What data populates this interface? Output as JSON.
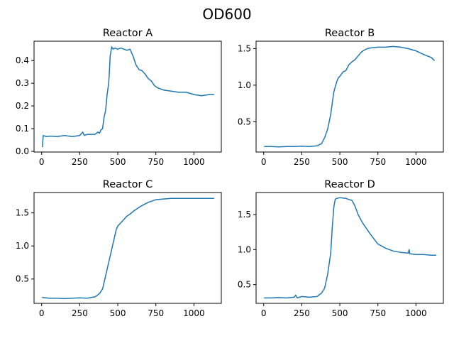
{
  "figure_title": "OD600",
  "chart_data": [
    {
      "type": "line",
      "title": "Reactor A",
      "xlabel": "",
      "ylabel": "",
      "xlim": [
        -50,
        1180
      ],
      "ylim": [
        -0.003,
        0.485
      ],
      "xticks": [
        0,
        250,
        500,
        750,
        1000
      ],
      "yticks": [
        0.0,
        0.1,
        0.2,
        0.3,
        0.4
      ],
      "ytick_labels": [
        "0.0",
        "0.1",
        "0.2",
        "0.3",
        "0.4"
      ],
      "grid": false,
      "series": [
        {
          "color": "#1f77b4",
          "x": [
            5,
            10,
            30,
            60,
            100,
            150,
            200,
            250,
            270,
            280,
            300,
            350,
            370,
            380,
            390,
            400,
            410,
            420,
            430,
            440,
            445,
            450,
            460,
            465,
            470,
            480,
            500,
            520,
            540,
            560,
            580,
            600,
            620,
            640,
            660,
            680,
            700,
            720,
            740,
            760,
            800,
            850,
            900,
            950,
            1000,
            1050,
            1100,
            1130
          ],
          "y": [
            0.02,
            0.07,
            0.065,
            0.067,
            0.065,
            0.07,
            0.065,
            0.07,
            0.085,
            0.07,
            0.075,
            0.075,
            0.085,
            0.08,
            0.095,
            0.1,
            0.15,
            0.18,
            0.25,
            0.3,
            0.35,
            0.42,
            0.46,
            0.455,
            0.45,
            0.455,
            0.45,
            0.455,
            0.45,
            0.445,
            0.45,
            0.42,
            0.38,
            0.36,
            0.355,
            0.34,
            0.32,
            0.31,
            0.29,
            0.28,
            0.27,
            0.265,
            0.26,
            0.26,
            0.25,
            0.245,
            0.25,
            0.25
          ]
        }
      ]
    },
    {
      "type": "line",
      "title": "Reactor B",
      "xlabel": "",
      "ylabel": "",
      "xlim": [
        -50,
        1180
      ],
      "ylim": [
        0.085,
        1.602
      ],
      "xticks": [
        0,
        250,
        500,
        750,
        1000
      ],
      "yticks": [
        0.5,
        1.0,
        1.5
      ],
      "ytick_labels": [
        "0.5",
        "1.0",
        "1.5"
      ],
      "grid": false,
      "series": [
        {
          "color": "#1f77b4",
          "x": [
            5,
            50,
            100,
            150,
            200,
            250,
            300,
            350,
            380,
            400,
            420,
            440,
            450,
            460,
            470,
            480,
            490,
            500,
            520,
            540,
            560,
            580,
            600,
            620,
            640,
            660,
            680,
            700,
            750,
            800,
            850,
            900,
            950,
            1000,
            1050,
            1100,
            1120
          ],
          "y": [
            0.16,
            0.16,
            0.155,
            0.16,
            0.16,
            0.165,
            0.16,
            0.17,
            0.2,
            0.28,
            0.4,
            0.6,
            0.75,
            0.9,
            0.98,
            1.05,
            1.1,
            1.12,
            1.18,
            1.2,
            1.28,
            1.32,
            1.35,
            1.4,
            1.45,
            1.48,
            1.5,
            1.51,
            1.52,
            1.52,
            1.53,
            1.52,
            1.5,
            1.47,
            1.42,
            1.38,
            1.34
          ]
        }
      ]
    },
    {
      "type": "line",
      "title": "Reactor C",
      "xlabel": "",
      "ylabel": "",
      "xlim": [
        -50,
        1180
      ],
      "ylim": [
        0.132,
        1.808
      ],
      "xticks": [
        0,
        250,
        500,
        750,
        1000
      ],
      "yticks": [
        0.5,
        1.0,
        1.5
      ],
      "ytick_labels": [
        "0.5",
        "1.0",
        "1.5"
      ],
      "grid": false,
      "series": [
        {
          "color": "#1f77b4",
          "x": [
            5,
            50,
            100,
            150,
            200,
            250,
            300,
            350,
            380,
            400,
            420,
            440,
            460,
            470,
            480,
            490,
            500,
            520,
            540,
            560,
            580,
            600,
            650,
            700,
            750,
            800,
            850,
            900,
            950,
            1000,
            1050,
            1100,
            1130
          ],
          "y": [
            0.22,
            0.21,
            0.21,
            0.205,
            0.21,
            0.215,
            0.21,
            0.23,
            0.28,
            0.35,
            0.55,
            0.75,
            0.95,
            1.05,
            1.15,
            1.25,
            1.3,
            1.35,
            1.4,
            1.45,
            1.48,
            1.52,
            1.6,
            1.66,
            1.7,
            1.71,
            1.72,
            1.72,
            1.72,
            1.72,
            1.72,
            1.72,
            1.72
          ]
        }
      ]
    },
    {
      "type": "line",
      "title": "Reactor D",
      "xlabel": "",
      "ylabel": "",
      "xlim": [
        -50,
        1180
      ],
      "ylim": [
        0.233,
        1.814
      ],
      "xticks": [
        0,
        250,
        500,
        750,
        1000
      ],
      "yticks": [
        0.5,
        1.0,
        1.5
      ],
      "ytick_labels": [
        "0.5",
        "1.0",
        "1.5"
      ],
      "grid": false,
      "series": [
        {
          "color": "#1f77b4",
          "x": [
            5,
            50,
            100,
            150,
            200,
            210,
            220,
            250,
            300,
            350,
            380,
            400,
            420,
            440,
            450,
            460,
            470,
            480,
            500,
            540,
            580,
            600,
            620,
            650,
            700,
            750,
            800,
            850,
            900,
            950,
            955,
            960,
            1000,
            1050,
            1100,
            1130
          ],
          "y": [
            0.31,
            0.31,
            0.315,
            0.31,
            0.32,
            0.35,
            0.31,
            0.33,
            0.32,
            0.33,
            0.38,
            0.45,
            0.65,
            0.95,
            1.3,
            1.6,
            1.72,
            1.73,
            1.74,
            1.73,
            1.7,
            1.62,
            1.5,
            1.38,
            1.22,
            1.08,
            1.02,
            0.98,
            0.96,
            0.95,
            1.0,
            0.94,
            0.93,
            0.93,
            0.92,
            0.92
          ]
        }
      ]
    }
  ]
}
